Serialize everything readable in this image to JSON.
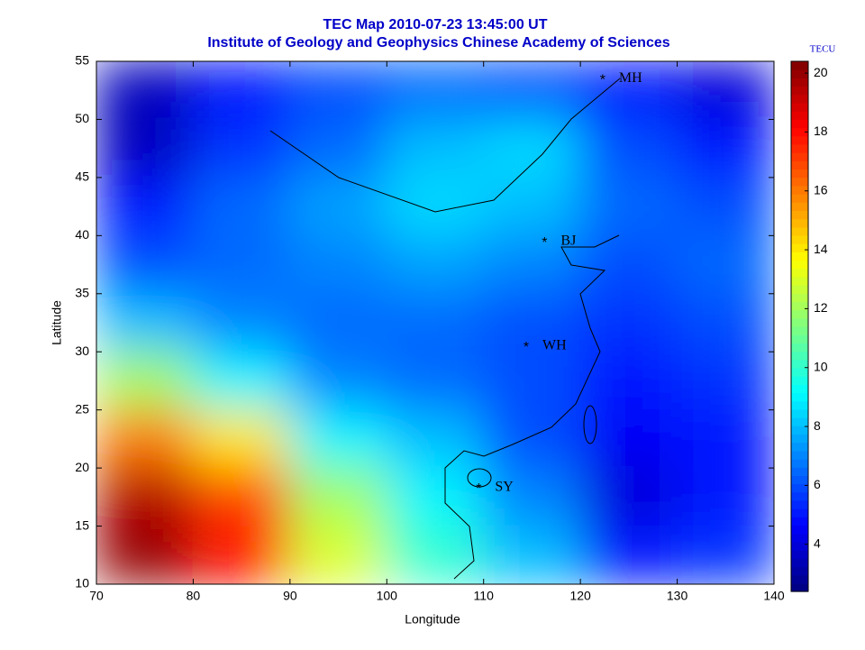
{
  "chart_data": {
    "type": "heatmap",
    "title": "TEC Map 2010-07-23 13:45:00 UT",
    "subtitle": "Institute of Geology and Geophysics Chinese Academy of Sciences",
    "x_label": "Longitude",
    "y_label": "Latitude",
    "colorbar_label": "TECU",
    "colormap": "jet",
    "x": [
      75,
      85,
      95,
      105,
      115,
      125,
      135
    ],
    "y": [
      52.5,
      47.5,
      42.5,
      37.5,
      32.5,
      27.5,
      22.5,
      17.5,
      12.5
    ],
    "z": [
      [
        3.5,
        5,
        6,
        6.5,
        6,
        5,
        4
      ],
      [
        3.5,
        5.5,
        6.5,
        8,
        8.5,
        6,
        5
      ],
      [
        5,
        6.5,
        7.5,
        8.5,
        8,
        6.5,
        6
      ],
      [
        6,
        6.5,
        7,
        7.5,
        7,
        6,
        6.5
      ],
      [
        8,
        7,
        6.5,
        6.5,
        6,
        5.5,
        6
      ],
      [
        12,
        9,
        7,
        6.5,
        6,
        5,
        5.5
      ],
      [
        16,
        14,
        9,
        8,
        6,
        4.5,
        5
      ],
      [
        19.5,
        17,
        12,
        9,
        7,
        4,
        5
      ],
      [
        20,
        18,
        13,
        10,
        8,
        5,
        5.5
      ]
    ],
    "xlim": [
      70,
      140
    ],
    "ylim": [
      10,
      55
    ],
    "xticks": [
      70,
      80,
      90,
      100,
      110,
      120,
      130,
      140
    ],
    "yticks": [
      10,
      15,
      20,
      25,
      30,
      35,
      40,
      45,
      50,
      55
    ],
    "clim": [
      2.4,
      20.4
    ],
    "cticks": [
      4,
      6,
      8,
      10,
      12,
      14,
      16,
      18,
      20
    ],
    "stations": [
      {
        "name": "MH",
        "lon": 122.3,
        "lat": 53.5
      },
      {
        "name": "BJ",
        "lon": 116.3,
        "lat": 39.5
      },
      {
        "name": "WH",
        "lon": 114.4,
        "lat": 30.5
      },
      {
        "name": "SY",
        "lon": 109.5,
        "lat": 18.3
      }
    ]
  }
}
